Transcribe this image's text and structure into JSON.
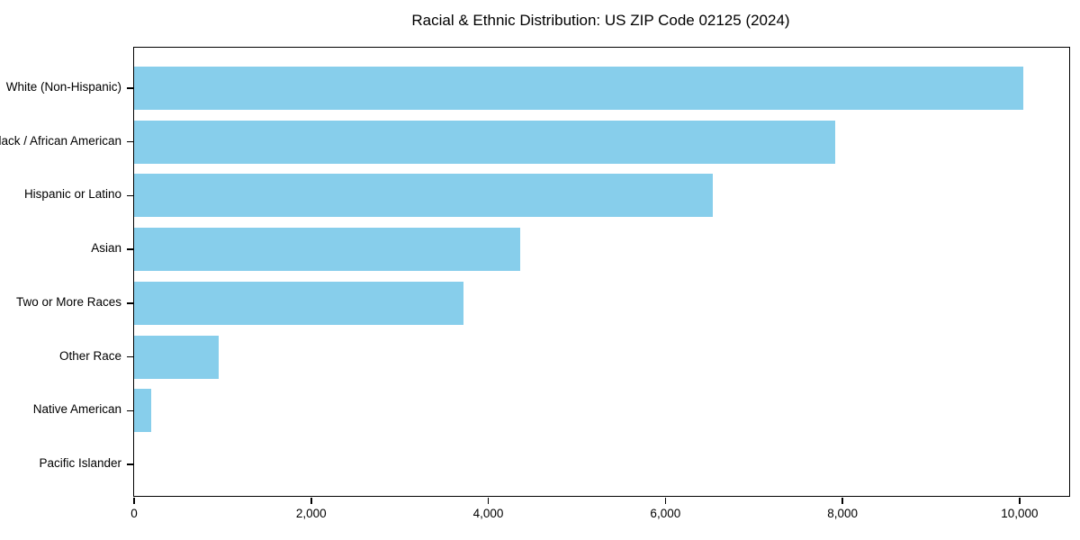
{
  "chart_data": {
    "type": "bar",
    "orientation": "horizontal",
    "title": "Racial & Ethnic Distribution: US ZIP Code 02125 (2024)",
    "xlabel": "",
    "ylabel": "",
    "categories": [
      "White (Non-Hispanic)",
      "Black / African American",
      "Hispanic or Latino",
      "Asian",
      "Two or More Races",
      "Other Race",
      "Native American",
      "Pacific Islander"
    ],
    "values": [
      10040,
      7920,
      6540,
      4360,
      3720,
      960,
      190,
      0
    ],
    "xlim": [
      0,
      10560
    ],
    "x_ticks": [
      0,
      2000,
      4000,
      6000,
      8000,
      10000
    ],
    "x_tick_labels": [
      "0",
      "2,000",
      "4,000",
      "6,000",
      "8,000",
      "10,000"
    ],
    "bar_color": "#87CEEB",
    "grid": false,
    "legend": null
  },
  "colors": {
    "bar": "#87CEEB",
    "text": "#000000",
    "spine": "#000000",
    "background": "#ffffff"
  }
}
